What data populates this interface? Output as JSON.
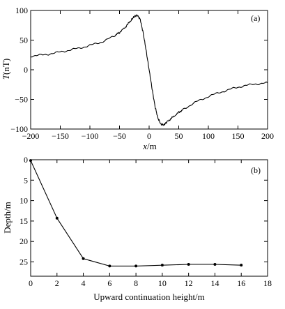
{
  "chart_data": [
    {
      "type": "line",
      "panel_label": "(a)",
      "xlabel_var": "x",
      "xlabel_unit": "/m",
      "ylabel_var": "T",
      "ylabel_unit": "(nT)",
      "xlim": [
        -200,
        200
      ],
      "ylim": [
        -100,
        100
      ],
      "xticks": [
        -200,
        -150,
        -100,
        -50,
        0,
        50,
        100,
        150,
        200
      ],
      "yticks": [
        -100,
        -50,
        0,
        50,
        100
      ],
      "grid": false,
      "legend": "none",
      "series": [
        {
          "color": "#000000",
          "x": [
            -200,
            -180,
            -160,
            -140,
            -120,
            -100,
            -80,
            -60,
            -50,
            -40,
            -30,
            -25,
            -20,
            -15,
            -10,
            -5,
            0,
            5,
            10,
            15,
            20,
            25,
            30,
            40,
            50,
            60,
            80,
            100,
            120,
            140,
            160,
            180,
            200
          ],
          "y": [
            23,
            25,
            28,
            32,
            36,
            41,
            47,
            56,
            63,
            72,
            84,
            90,
            92,
            85,
            62,
            32,
            0,
            -32,
            -62,
            -82,
            -92,
            -93,
            -88,
            -80,
            -72,
            -65,
            -54,
            -45,
            -38,
            -32,
            -27,
            -24,
            -22
          ]
        }
      ]
    },
    {
      "type": "line",
      "panel_label": "(b)",
      "xlabel": "Upward continuation height/m",
      "ylabel": "Depth/m",
      "xlim": [
        0,
        18
      ],
      "ylim": [
        0,
        28.5
      ],
      "y_inverted": true,
      "xticks": [
        0,
        2,
        4,
        6,
        8,
        10,
        12,
        14,
        16,
        18
      ],
      "yticks": [
        0,
        5,
        10,
        15,
        20,
        25
      ],
      "grid": false,
      "legend": "none",
      "markers": true,
      "series": [
        {
          "color": "#000000",
          "x": [
            0,
            2,
            4,
            6,
            8,
            10,
            12,
            14,
            16
          ],
          "y": [
            0.2,
            14.3,
            24.2,
            26.0,
            26.0,
            25.8,
            25.6,
            25.6,
            25.8
          ]
        }
      ]
    }
  ]
}
